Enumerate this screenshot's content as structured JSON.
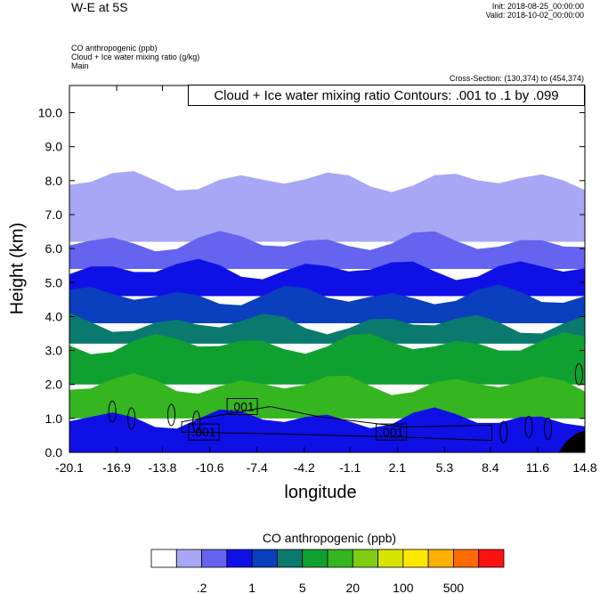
{
  "header": {
    "title": "W-E at 5S",
    "init": "Init: 2018-08-25_00:00:00",
    "valid": "Valid: 2018-10-02_00:00:00",
    "field1": "CO anthropogenic   (ppb)",
    "field2": "Cloud + Ice water mixing ratio   (g/kg)",
    "field3": "Main",
    "cross_section": "Cross-Section: (130,374) to (454,374)",
    "contour_note": "Cloud + Ice water mixing ratio Contours: .001 to .1 by .099"
  },
  "chart_data": {
    "type": "heatmap",
    "xlabel": "longitude",
    "ylabel": "Height (km)",
    "x_ticks": [
      "-20.1",
      "-16.9",
      "-13.8",
      "-10.6",
      "-7.4",
      "-4.2",
      "-1.1",
      "2.1",
      "5.3",
      "8.4",
      "11.6",
      "14.8"
    ],
    "y_ticks": [
      "0.0",
      "1.0",
      "2.0",
      "3.0",
      "4.0",
      "5.0",
      "6.0",
      "7.0",
      "8.0",
      "9.0",
      "10.0"
    ],
    "xlim": [
      -20.1,
      14.8
    ],
    "ylim": [
      0.0,
      10.8
    ],
    "contour_labels": [
      ".001",
      ".001",
      ".001"
    ],
    "colorbar": {
      "title": "CO anthropogenic  (ppb)",
      "colors": [
        "#ffffff",
        "#a7a7f5",
        "#6464f0",
        "#0f10e6",
        "#0a3fbe",
        "#0a7a6e",
        "#10a030",
        "#35b520",
        "#7fcc10",
        "#d8e400",
        "#ffe800",
        "#ffb000",
        "#ff6a00",
        "#ff1010"
      ],
      "labels": [
        ".2",
        "1",
        "5",
        "20",
        "100",
        "500"
      ]
    },
    "bands": [
      {
        "color": "#ffffff",
        "height_bottom": 8.0,
        "height_top": 10.8
      },
      {
        "color": "#a7a7f5",
        "height_bottom": 6.2,
        "height_top": 8.0
      },
      {
        "color": "#6464f0",
        "height_bottom": 5.4,
        "height_top": 6.2
      },
      {
        "color": "#0f10e6",
        "height_bottom": 4.6,
        "height_top": 5.4
      },
      {
        "color": "#0a3fbe",
        "height_bottom": 3.8,
        "height_top": 4.6
      },
      {
        "color": "#0a7a6e",
        "height_bottom": 3.2,
        "height_top": 3.8
      },
      {
        "color": "#10a030",
        "height_bottom": 2.0,
        "height_top": 3.2
      },
      {
        "color": "#35b520",
        "height_bottom": 1.0,
        "height_top": 2.0
      },
      {
        "color": "#0f10e6",
        "height_bottom": 0.0,
        "height_top": 1.0
      }
    ]
  }
}
